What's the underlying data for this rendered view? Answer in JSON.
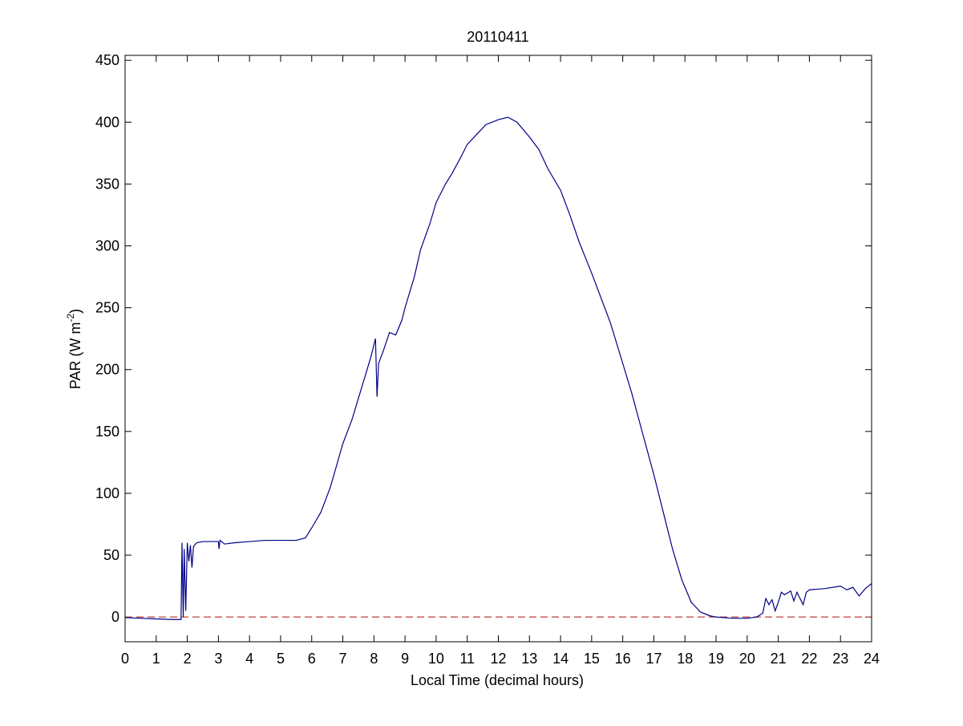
{
  "chart_data": {
    "type": "line",
    "title": "20110411",
    "xlabel": "Local Time (decimal hours)",
    "ylabel": [
      "PAR (W m",
      "-2",
      ")"
    ],
    "xlim": [
      0,
      24
    ],
    "ylim": [
      -20,
      454
    ],
    "xticks": [
      0,
      1,
      2,
      3,
      4,
      5,
      6,
      7,
      8,
      9,
      10,
      11,
      12,
      13,
      14,
      15,
      16,
      17,
      18,
      19,
      20,
      21,
      22,
      23,
      24
    ],
    "yticks": [
      0,
      50,
      100,
      150,
      200,
      250,
      300,
      350,
      400,
      450
    ],
    "reference_line": {
      "value": 0,
      "color": "#b8403c",
      "style": "dashed"
    },
    "series": [
      {
        "color": "#000088",
        "x": [
          0,
          0.5,
          1,
          1.5,
          1.8,
          1.83,
          1.87,
          1.9,
          1.95,
          2.0,
          2.05,
          2.1,
          2.15,
          2.2,
          2.3,
          2.5,
          3.0,
          3.02,
          3.05,
          3.2,
          3.5,
          4,
          4.5,
          5,
          5.5,
          5.8,
          6,
          6.3,
          6.6,
          7,
          7.3,
          7.6,
          7.9,
          8.05,
          8.1,
          8.15,
          8.3,
          8.5,
          8.7,
          8.9,
          9,
          9.3,
          9.5,
          9.8,
          10,
          10.3,
          10.5,
          10.8,
          11,
          11.3,
          11.6,
          12,
          12.3,
          12.6,
          13,
          13.3,
          13.6,
          14,
          14.3,
          14.6,
          15,
          15.3,
          15.6,
          16,
          16.3,
          16.6,
          17,
          17.3,
          17.6,
          17.9,
          18.2,
          18.5,
          18.8,
          19,
          19.5,
          20,
          20.3,
          20.5,
          20.6,
          20.7,
          20.8,
          20.9,
          21,
          21.1,
          21.2,
          21.4,
          21.5,
          21.6,
          21.8,
          21.9,
          22,
          22.5,
          23,
          23.2,
          23.4,
          23.6,
          23.8,
          24
        ],
        "values": [
          -0.5,
          -1,
          -1.5,
          -2,
          -2,
          60,
          0,
          55,
          5,
          60,
          45,
          58,
          40,
          57,
          60,
          61,
          61,
          55,
          62,
          59,
          60,
          61,
          62,
          62,
          62,
          64,
          72,
          85,
          105,
          140,
          160,
          185,
          210,
          225,
          178,
          205,
          215,
          230,
          228,
          240,
          250,
          275,
          297,
          318,
          335,
          350,
          358,
          372,
          382,
          390,
          398,
          402,
          404,
          400,
          388,
          378,
          362,
          345,
          325,
          303,
          278,
          258,
          238,
          205,
          180,
          152,
          115,
          85,
          55,
          30,
          12,
          4,
          1,
          0,
          -1,
          -1,
          0,
          3,
          15,
          10,
          14,
          5,
          12,
          20,
          18,
          21,
          13,
          20,
          10,
          20,
          22,
          23,
          25,
          22,
          24,
          17,
          23,
          27
        ]
      }
    ]
  }
}
